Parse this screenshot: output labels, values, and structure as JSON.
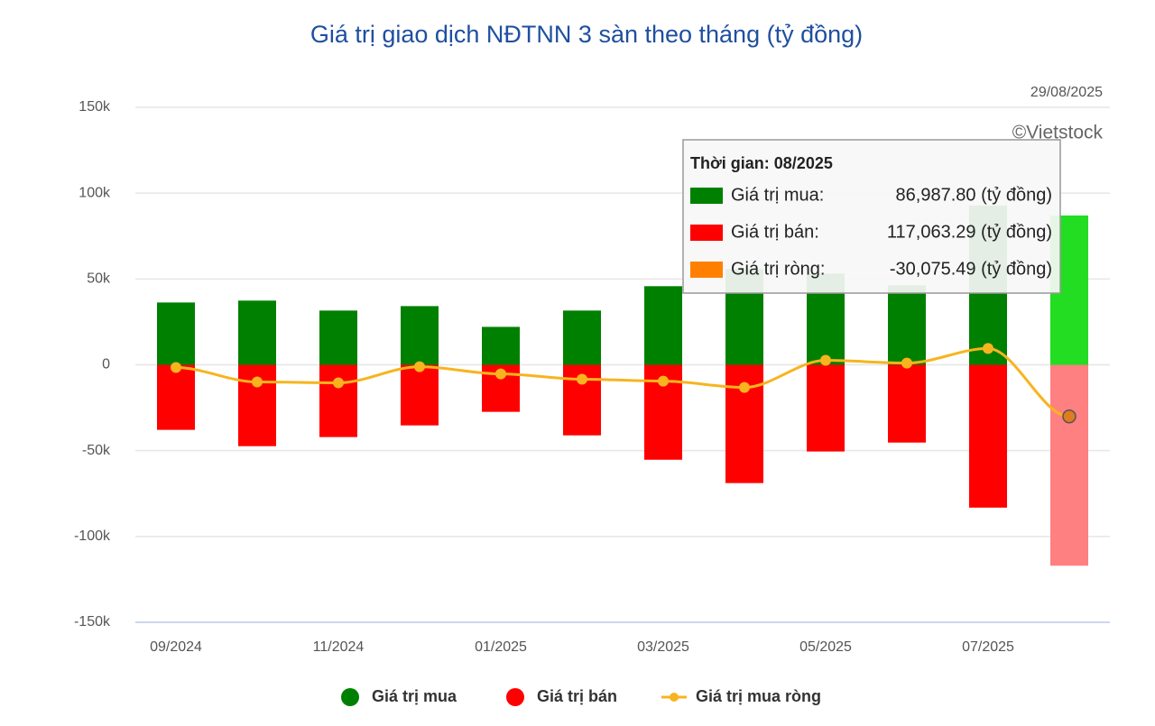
{
  "chart_data": {
    "type": "bar-line",
    "title": "Giá trị giao dịch NĐTNN 3 sàn theo tháng (tỷ đồng)",
    "date": "29/08/2025",
    "credit": "©Vietstock",
    "categories": [
      "09/2024",
      null,
      "11/2024",
      null,
      "01/2025",
      null,
      "03/2025",
      null,
      "05/2025",
      null,
      "07/2025",
      null
    ],
    "series": [
      {
        "name": "Giá trị mua",
        "kind": "bar",
        "color": "#008000",
        "highlight_color": "#22dd22",
        "values": [
          36300,
          37400,
          31600,
          34200,
          22100,
          31600,
          45800,
          55700,
          53100,
          46300,
          92700,
          86987.8
        ]
      },
      {
        "name": "Giá trị bán",
        "kind": "bar",
        "color": "#ff0000",
        "highlight_color": "#ff8080",
        "values": [
          -37900,
          -47400,
          -42100,
          -35300,
          -27400,
          -41100,
          -55300,
          -68900,
          -50500,
          -45300,
          -83200,
          -117063.29
        ]
      },
      {
        "name": "Giá trị mua ròng",
        "kind": "line",
        "color": "#f7b41e",
        "highlight_color": "#e07b20",
        "values": [
          -1600,
          -10000,
          -10500,
          -1100,
          -5300,
          -8400,
          -9500,
          -13200,
          2600,
          1000,
          9500,
          -30075.49
        ]
      }
    ],
    "highlight_index": 11,
    "ylim": [
      -150000,
      150000
    ],
    "yticks": [
      {
        "value": -150000,
        "label": "-150k"
      },
      {
        "value": -100000,
        "label": "-100k"
      },
      {
        "value": -50000,
        "label": "-50k"
      },
      0,
      {
        "value": 50000,
        "label": "50k"
      },
      {
        "value": 100000,
        "label": "100k"
      },
      {
        "value": 150000,
        "label": "150k"
      }
    ],
    "grid": true,
    "tooltip": {
      "title": "Thời gian: 08/2025",
      "rows": [
        {
          "label": "Giá trị mua:",
          "value": "86,987.80 (tỷ đồng)",
          "color": "#008000"
        },
        {
          "label": "Giá trị bán:",
          "value": "117,063.29 (tỷ đồng)",
          "color": "#ff0000"
        },
        {
          "label": "Giá trị ròng:",
          "value": "-30,075.49 (tỷ đồng)",
          "color": "#ff8000"
        }
      ]
    }
  }
}
